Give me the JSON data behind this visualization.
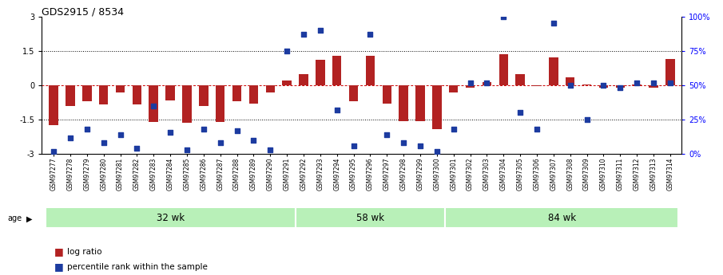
{
  "title": "GDS2915 / 8534",
  "samples": [
    "GSM97277",
    "GSM97278",
    "GSM97279",
    "GSM97280",
    "GSM97281",
    "GSM97282",
    "GSM97283",
    "GSM97284",
    "GSM97285",
    "GSM97286",
    "GSM97287",
    "GSM97288",
    "GSM97289",
    "GSM97290",
    "GSM97291",
    "GSM97292",
    "GSM97293",
    "GSM97294",
    "GSM97295",
    "GSM97296",
    "GSM97297",
    "GSM97298",
    "GSM97299",
    "GSM97300",
    "GSM97301",
    "GSM97302",
    "GSM97303",
    "GSM97304",
    "GSM97305",
    "GSM97306",
    "GSM97307",
    "GSM97308",
    "GSM97309",
    "GSM97310",
    "GSM97311",
    "GSM97312",
    "GSM97313",
    "GSM97314"
  ],
  "log_ratio": [
    -1.75,
    -0.9,
    -0.7,
    -0.85,
    -0.3,
    -0.85,
    -1.6,
    -0.65,
    -1.65,
    -0.9,
    -1.6,
    -0.7,
    -0.8,
    -0.3,
    0.2,
    0.5,
    1.1,
    1.3,
    -0.7,
    1.3,
    -0.8,
    -1.55,
    -1.55,
    -1.9,
    -0.3,
    -0.1,
    0.15,
    1.35,
    0.5,
    -0.05,
    1.2,
    0.35,
    0.05,
    -0.1,
    -0.1,
    0.05,
    -0.1,
    1.15
  ],
  "percentile_rank": [
    2,
    12,
    18,
    8,
    14,
    4,
    35,
    16,
    3,
    18,
    8,
    17,
    10,
    3,
    75,
    87,
    90,
    32,
    6,
    87,
    14,
    8,
    6,
    2,
    18,
    52,
    52,
    100,
    30,
    18,
    95,
    50,
    25,
    50,
    48,
    52,
    52,
    52
  ],
  "groups": [
    {
      "label": "32 wk",
      "start": 0,
      "end": 15
    },
    {
      "label": "58 wk",
      "start": 15,
      "end": 24
    },
    {
      "label": "84 wk",
      "start": 24,
      "end": 38
    }
  ],
  "bar_color": "#B22222",
  "dot_color": "#1C3BA0",
  "ylim_left": [
    -3,
    3
  ],
  "yticks_left": [
    -3,
    -1.5,
    0,
    1.5,
    3
  ],
  "yticks_right": [
    0,
    25,
    50,
    75,
    100
  ],
  "ytick_labels_right": [
    "0%",
    "25%",
    "50%",
    "75%",
    "100%"
  ],
  "hline_color": "#CC0000",
  "group_bg": "#b8f0b8"
}
